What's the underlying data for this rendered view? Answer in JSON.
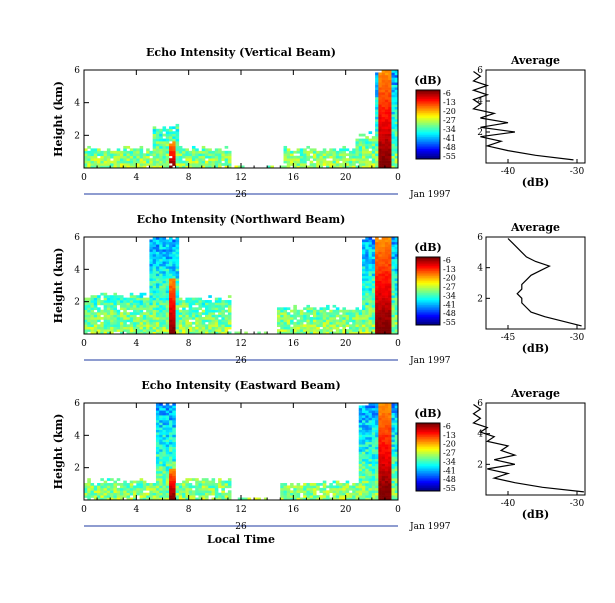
{
  "chart_data": [
    {
      "type": "heatmap",
      "title": "Echo Intensity (Vertical Beam)",
      "ylabel": "Height (km)",
      "xticks": [
        "0",
        "4",
        "8",
        "12",
        "16",
        "20",
        "0"
      ],
      "yticks": [
        "2",
        "4",
        "6"
      ],
      "day_label": "26",
      "date_label": "Jan 1997",
      "colorbar_unit": "(dB)",
      "colorbar_ticks": [
        "-6",
        "-13",
        "-20",
        "-27",
        "-34",
        "-41",
        "-48",
        "-55"
      ],
      "average": {
        "title": "Average",
        "xlabel": "(dB)",
        "xticks": [
          "-40",
          "-30"
        ],
        "yticks": [
          "2",
          "4",
          "6"
        ],
        "height_km": [
          0.2,
          0.5,
          0.8,
          1.1,
          1.4,
          1.7,
          2.0,
          2.3,
          2.6,
          2.9,
          3.2,
          3.5,
          3.8,
          4.1,
          4.4,
          4.7,
          5.0,
          5.3,
          5.6,
          5.9
        ],
        "db": [
          -30.5,
          -36,
          -40,
          -43,
          -41,
          -44,
          -39,
          -44,
          -40,
          -44,
          -42,
          -45,
          -44,
          -45,
          -43,
          -45,
          -43,
          -45,
          -44,
          -45
        ]
      }
    },
    {
      "type": "heatmap",
      "title": "Echo Intensity (Northward Beam)",
      "ylabel": "Height (km)",
      "xticks": [
        "0",
        "4",
        "8",
        "12",
        "16",
        "20",
        "0"
      ],
      "yticks": [
        "2",
        "4",
        "6"
      ],
      "day_label": "26",
      "date_label": "Jan 1997",
      "colorbar_unit": "(dB)",
      "colorbar_ticks": [
        "-6",
        "-13",
        "-20",
        "-27",
        "-34",
        "-41",
        "-48",
        "-55"
      ],
      "average": {
        "title": "Average",
        "xlabel": "(dB)",
        "xticks": [
          "-45",
          "-30"
        ],
        "yticks": [
          "2",
          "4",
          "6"
        ],
        "height_km": [
          0.2,
          0.5,
          0.8,
          1.1,
          1.4,
          1.7,
          2.0,
          2.3,
          2.6,
          2.9,
          3.2,
          3.5,
          3.8,
          4.1,
          4.4,
          4.7,
          5.0,
          5.3,
          5.6,
          5.9
        ],
        "db": [
          -29,
          -33,
          -37,
          -40,
          -41,
          -42,
          -42,
          -43,
          -42,
          -42,
          -41,
          -40,
          -38,
          -36,
          -39,
          -41,
          -42,
          -43,
          -44,
          -45
        ]
      }
    },
    {
      "type": "heatmap",
      "title": "Echo Intensity (Eastward Beam)",
      "ylabel": "Height (km)",
      "xticks": [
        "0",
        "4",
        "8",
        "12",
        "16",
        "20",
        "0"
      ],
      "yticks": [
        "2",
        "4",
        "6"
      ],
      "day_label": "26",
      "date_label": "Jan 1997",
      "xlabel": "Local Time",
      "colorbar_unit": "(dB)",
      "colorbar_ticks": [
        "-6",
        "-13",
        "-20",
        "-27",
        "-34",
        "-41",
        "-48",
        "-55"
      ],
      "average": {
        "title": "Average",
        "xlabel": "(dB)",
        "xticks": [
          "-40",
          "-30"
        ],
        "yticks": [
          "2",
          "4",
          "6"
        ],
        "height_km": [
          0.2,
          0.5,
          0.8,
          1.1,
          1.4,
          1.7,
          2.0,
          2.3,
          2.6,
          2.9,
          3.2,
          3.5,
          3.8,
          4.1,
          4.4,
          4.7,
          5.0,
          5.3,
          5.6,
          5.9
        ],
        "db": [
          -29,
          -35,
          -39,
          -42,
          -40,
          -43,
          -39,
          -42,
          -39,
          -41,
          -40,
          -43,
          -42,
          -44,
          -43,
          -45,
          -44,
          -45,
          -44,
          -45
        ]
      }
    }
  ]
}
